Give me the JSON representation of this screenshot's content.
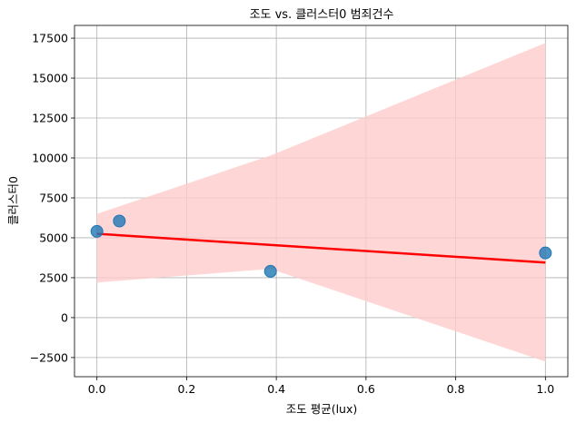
{
  "chart_data": {
    "type": "scatter",
    "title": "조도 vs. 클러스터0 범죄건수",
    "xlabel": "조도 평균(lux)",
    "ylabel": "클러스터0",
    "xlim": [
      -0.05,
      1.05
    ],
    "ylim": [
      -3700,
      18300
    ],
    "xticks": [
      0.0,
      0.2,
      0.4,
      0.6,
      0.8,
      1.0
    ],
    "xtick_labels": [
      "0.0",
      "0.2",
      "0.4",
      "0.6",
      "0.8",
      "1.0"
    ],
    "yticks": [
      -2500,
      0,
      2500,
      5000,
      7500,
      10000,
      12500,
      15000,
      17500
    ],
    "ytick_labels": [
      "−2500",
      "0",
      "2500",
      "5000",
      "7500",
      "10000",
      "12500",
      "15000",
      "17500"
    ],
    "grid": true,
    "points": [
      {
        "x": 0.0,
        "y": 5400
      },
      {
        "x": 0.05,
        "y": 6050
      },
      {
        "x": 0.387,
        "y": 2900
      },
      {
        "x": 1.0,
        "y": 4050
      }
    ],
    "regression_line": {
      "x": [
        0.0,
        1.0
      ],
      "y": [
        5250,
        3450
      ]
    },
    "confidence_band": {
      "x": [
        0.0,
        0.387,
        1.0
      ],
      "upper": [
        6500,
        10150,
        17200
      ],
      "lower": [
        2200,
        3050,
        -2750
      ]
    },
    "colors": {
      "points": "#1f77b4",
      "line": "#ff0000",
      "band": "#ffcccc"
    }
  }
}
